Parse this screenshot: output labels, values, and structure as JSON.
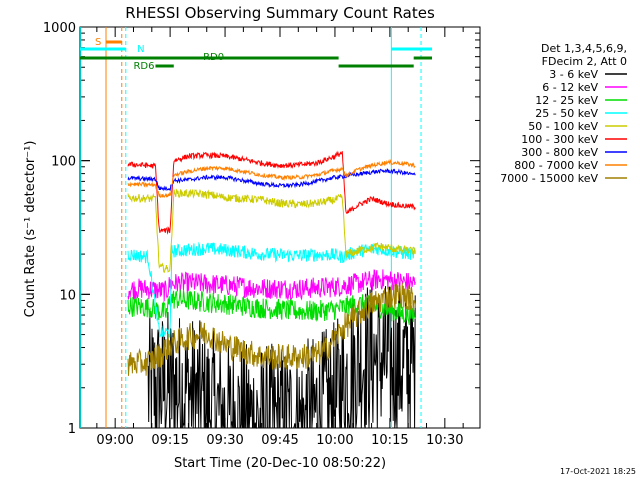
{
  "chart_data": {
    "type": "line",
    "title": "RHESSI Observing Summary Count Rates",
    "xlabel": "Start Time (20-Dec-10 08:50:22)",
    "ylabel": "Count Rate (s⁻¹ detector⁻¹)",
    "yscale": "log",
    "ylim": [
      1,
      1000
    ],
    "xlim_min": [
      -9.6,
      99.6
    ],
    "xticks": [
      {
        "t": 0,
        "label": "09:00"
      },
      {
        "t": 15,
        "label": "09:15"
      },
      {
        "t": 30,
        "label": "09:30"
      },
      {
        "t": 45,
        "label": "09:45"
      },
      {
        "t": 60,
        "label": "10:00"
      },
      {
        "t": 75,
        "label": "10:15"
      },
      {
        "t": 90,
        "label": "10:30"
      }
    ],
    "yticks": [
      {
        "v": 1,
        "label": "1"
      },
      {
        "v": 10,
        "label": "10"
      },
      {
        "v": 100,
        "label": "100"
      },
      {
        "v": 1000,
        "label": "1000"
      }
    ],
    "legend_header": [
      "Det 1,3,4,5,6,9,",
      "FDecim 2, Att 0"
    ],
    "series": [
      {
        "name": "3 - 6 keV",
        "color": "#000000",
        "points": [
          [
            9,
            1.9
          ],
          [
            14,
            2.0
          ],
          [
            20,
            1.9
          ],
          [
            26,
            1.4
          ],
          [
            30,
            1.2
          ],
          [
            40,
            1.1
          ],
          [
            50,
            1.1
          ],
          [
            55,
            1.3
          ],
          [
            60,
            1.6
          ],
          [
            64,
            2.5
          ],
          [
            67,
            3.3
          ],
          [
            70,
            3.4
          ],
          [
            74,
            3.2
          ],
          [
            78,
            3.0
          ],
          [
            82,
            2.9
          ]
        ],
        "noise": 0.6
      },
      {
        "name": "6 - 12 keV",
        "color": "#ff00ff",
        "points": [
          [
            3.5,
            11
          ],
          [
            9,
            11
          ],
          [
            14,
            10.5
          ],
          [
            15,
            12
          ],
          [
            20,
            12.2
          ],
          [
            30,
            11.7
          ],
          [
            40,
            11.1
          ],
          [
            50,
            11.0
          ],
          [
            55,
            11.2
          ],
          [
            60,
            11.4
          ],
          [
            66,
            12
          ],
          [
            72,
            13
          ],
          [
            78,
            12.5
          ],
          [
            82,
            12
          ]
        ],
        "noise": 0.08
      },
      {
        "name": "12 - 25 keV",
        "color": "#00dd00",
        "points": [
          [
            3.5,
            8.2
          ],
          [
            9,
            8
          ],
          [
            14,
            7.2
          ],
          [
            15,
            9.3
          ],
          [
            20,
            9
          ],
          [
            30,
            8.5
          ],
          [
            40,
            7.9
          ],
          [
            50,
            7.5
          ],
          [
            55,
            7.5
          ],
          [
            60,
            7.7
          ],
          [
            66,
            8.5
          ],
          [
            72,
            8.0
          ],
          [
            78,
            7.2
          ],
          [
            82,
            7.0
          ]
        ],
        "noise": 0.08
      },
      {
        "name": "25 - 50 keV",
        "color": "#00ffff",
        "points": [
          [
            3.5,
            20
          ],
          [
            9,
            19
          ],
          [
            12,
            5.2
          ],
          [
            15,
            5.2
          ],
          [
            15.5,
            21
          ],
          [
            20,
            21.5
          ],
          [
            25,
            22
          ],
          [
            30,
            21.5
          ],
          [
            40,
            20
          ],
          [
            50,
            19.5
          ],
          [
            55,
            19.8
          ],
          [
            60,
            19.7
          ],
          [
            62,
            19
          ],
          [
            66,
            21
          ],
          [
            72,
            22
          ],
          [
            78,
            20.5
          ],
          [
            82,
            20
          ]
        ],
        "noise": 0.05
      },
      {
        "name": "50 - 100 keV",
        "color": "#cccc00",
        "points": [
          [
            3.5,
            53
          ],
          [
            9,
            52
          ],
          [
            11,
            52
          ],
          [
            12,
            16
          ],
          [
            14,
            15.5
          ],
          [
            15,
            15.5
          ],
          [
            16,
            57
          ],
          [
            20,
            57
          ],
          [
            25,
            56
          ],
          [
            30,
            53
          ],
          [
            35,
            52
          ],
          [
            40,
            51
          ],
          [
            45,
            48
          ],
          [
            50,
            47
          ],
          [
            55,
            48
          ],
          [
            60,
            51
          ],
          [
            62,
            53
          ],
          [
            63,
            20
          ],
          [
            66,
            21
          ],
          [
            72,
            23
          ],
          [
            78,
            21.5
          ],
          [
            82,
            21
          ]
        ],
        "noise": 0.03
      },
      {
        "name": "100 - 300 keV",
        "color": "#ff0000",
        "points": [
          [
            3.5,
            94
          ],
          [
            9,
            92
          ],
          [
            11,
            91
          ],
          [
            12,
            30
          ],
          [
            15,
            30
          ],
          [
            16,
            100
          ],
          [
            20,
            108
          ],
          [
            25,
            110
          ],
          [
            30,
            108
          ],
          [
            35,
            102
          ],
          [
            40,
            96
          ],
          [
            45,
            92
          ],
          [
            50,
            93
          ],
          [
            55,
            96
          ],
          [
            60,
            108
          ],
          [
            62,
            115
          ],
          [
            63,
            40
          ],
          [
            66,
            46
          ],
          [
            70,
            52
          ],
          [
            74,
            48
          ],
          [
            78,
            46
          ],
          [
            82,
            45
          ]
        ],
        "noise": 0.02
      },
      {
        "name": "300 - 800 keV",
        "color": "#0000ff",
        "points": [
          [
            3.5,
            74
          ],
          [
            9,
            73
          ],
          [
            11,
            73
          ],
          [
            12,
            62
          ],
          [
            15,
            62
          ],
          [
            16,
            71
          ],
          [
            20,
            72
          ],
          [
            25,
            75
          ],
          [
            30,
            75
          ],
          [
            35,
            71
          ],
          [
            40,
            67
          ],
          [
            45,
            65
          ],
          [
            50,
            66
          ],
          [
            55,
            70
          ],
          [
            60,
            75
          ],
          [
            62,
            76
          ],
          [
            63,
            77
          ],
          [
            66,
            79
          ],
          [
            70,
            82
          ],
          [
            74,
            84
          ],
          [
            78,
            82
          ],
          [
            82,
            78
          ]
        ],
        "noise": 0.015
      },
      {
        "name": "800 - 7000 keV",
        "color": "#ff8000",
        "points": [
          [
            3.5,
            67
          ],
          [
            9,
            66
          ],
          [
            11,
            66
          ],
          [
            12,
            55
          ],
          [
            15,
            55
          ],
          [
            16,
            78
          ],
          [
            20,
            83
          ],
          [
            25,
            88
          ],
          [
            30,
            88
          ],
          [
            35,
            83
          ],
          [
            40,
            78
          ],
          [
            45,
            75
          ],
          [
            50,
            75
          ],
          [
            55,
            78
          ],
          [
            60,
            85
          ],
          [
            62,
            87
          ],
          [
            63,
            77
          ],
          [
            66,
            85
          ],
          [
            70,
            92
          ],
          [
            74,
            97
          ],
          [
            78,
            96
          ],
          [
            82,
            92
          ]
        ],
        "noise": 0.015
      },
      {
        "name": "7000 - 15000 keV",
        "color": "#a08000",
        "points": [
          [
            3.5,
            3
          ],
          [
            9,
            3.1
          ],
          [
            12,
            3.5
          ],
          [
            15,
            4.2
          ],
          [
            20,
            4.8
          ],
          [
            25,
            5.2
          ],
          [
            30,
            4.2
          ],
          [
            35,
            3.8
          ],
          [
            40,
            3.4
          ],
          [
            45,
            3.4
          ],
          [
            50,
            3.4
          ],
          [
            55,
            3.5
          ],
          [
            58,
            4
          ],
          [
            62,
            5.5
          ],
          [
            66,
            7
          ],
          [
            70,
            8.5
          ],
          [
            74,
            9.5
          ],
          [
            78,
            10
          ],
          [
            82,
            9
          ]
        ],
        "noise": 0.1
      }
    ],
    "annotations": {
      "s_label": "S",
      "n_label": "N",
      "rd0_label": "RD0",
      "rd6_label": "RD6",
      "saa_vertical_lines_t": [
        -2.5,
        1.8
      ],
      "night_vertical_lines_t": [
        -9.4,
        2.9,
        75.4,
        83.5
      ],
      "saa_bar": [
        -2.5,
        1.8
      ],
      "night_bars": [
        [
          -9.6,
          2.9
        ],
        [
          75.4,
          86.5
        ]
      ],
      "rd0_bars": [
        [
          -9.6,
          61
        ],
        [
          81.5,
          86.5
        ]
      ],
      "rd6_bars": [
        [
          11,
          16
        ],
        [
          61,
          81.5
        ]
      ]
    }
  },
  "footer": {
    "timestamp": "17-Oct-2021 18:25"
  }
}
